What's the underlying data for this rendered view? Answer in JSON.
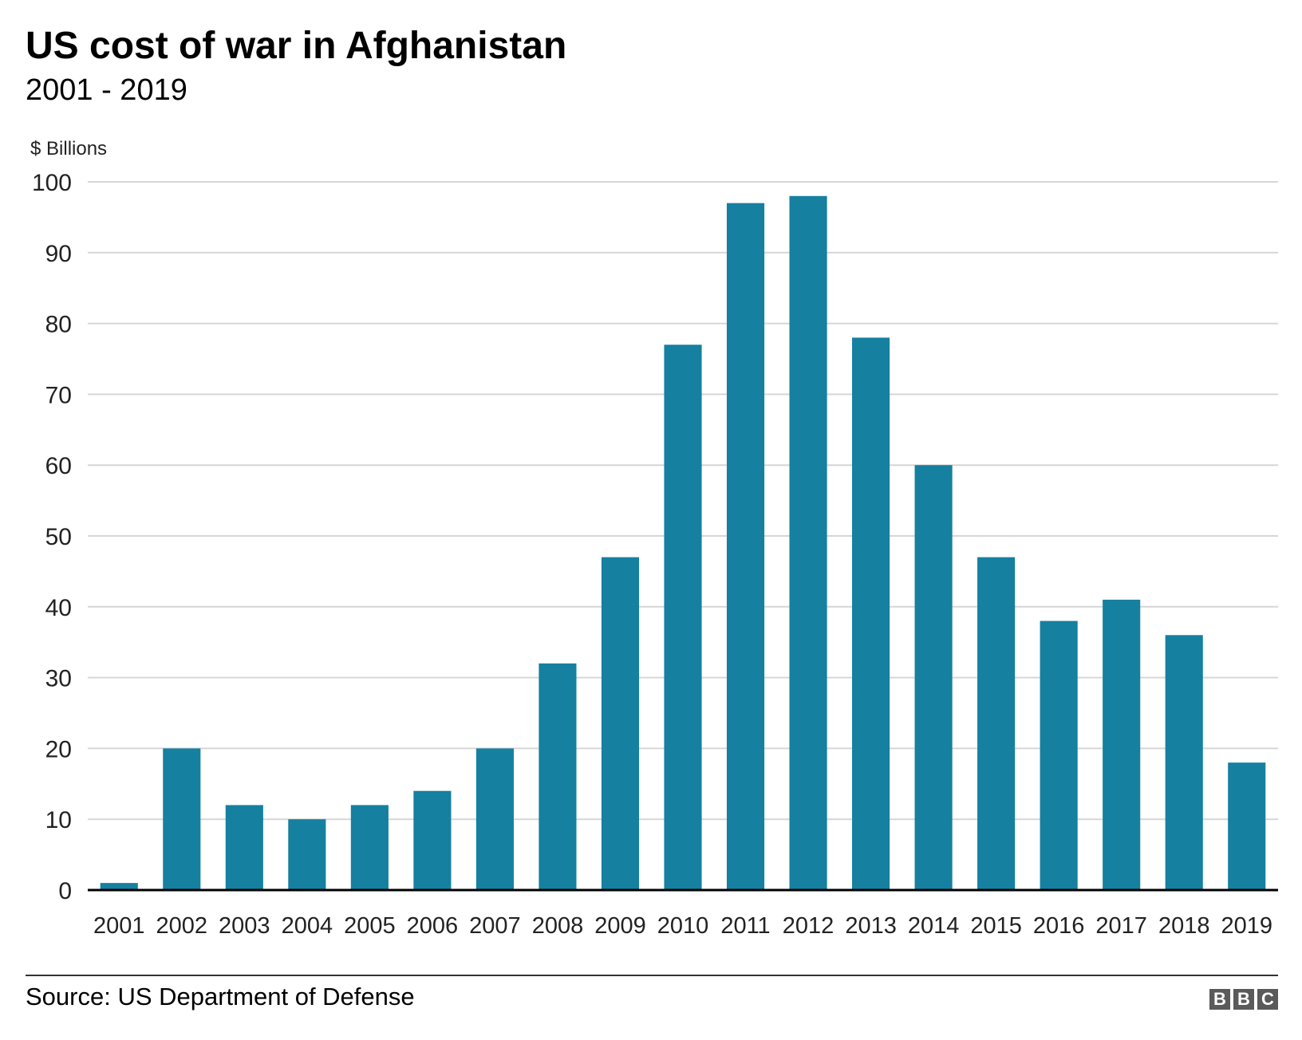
{
  "title": "US cost of war in Afghanistan",
  "subtitle": "2001 - 2019",
  "source": "Source: US Department of Defense",
  "logo": [
    "B",
    "B",
    "C"
  ],
  "colors": {
    "bar": "#1580a0",
    "grid": "#d6d6d6",
    "axis": "#000000"
  },
  "chart_data": {
    "type": "bar",
    "title": "US cost of war in Afghanistan",
    "subtitle": "2001 - 2019",
    "xlabel": "",
    "ylabel": "$ Billions",
    "ylim": [
      0,
      100
    ],
    "yticks": [
      0,
      10,
      20,
      30,
      40,
      50,
      60,
      70,
      80,
      90,
      100
    ],
    "grid": true,
    "categories": [
      "2001",
      "2002",
      "2003",
      "2004",
      "2005",
      "2006",
      "2007",
      "2008",
      "2009",
      "2010",
      "2011",
      "2012",
      "2013",
      "2014",
      "2015",
      "2016",
      "2017",
      "2018",
      "2019"
    ],
    "values": [
      1,
      20,
      12,
      10,
      12,
      14,
      20,
      32,
      47,
      77,
      97,
      98,
      78,
      60,
      47,
      38,
      41,
      36,
      18
    ]
  }
}
